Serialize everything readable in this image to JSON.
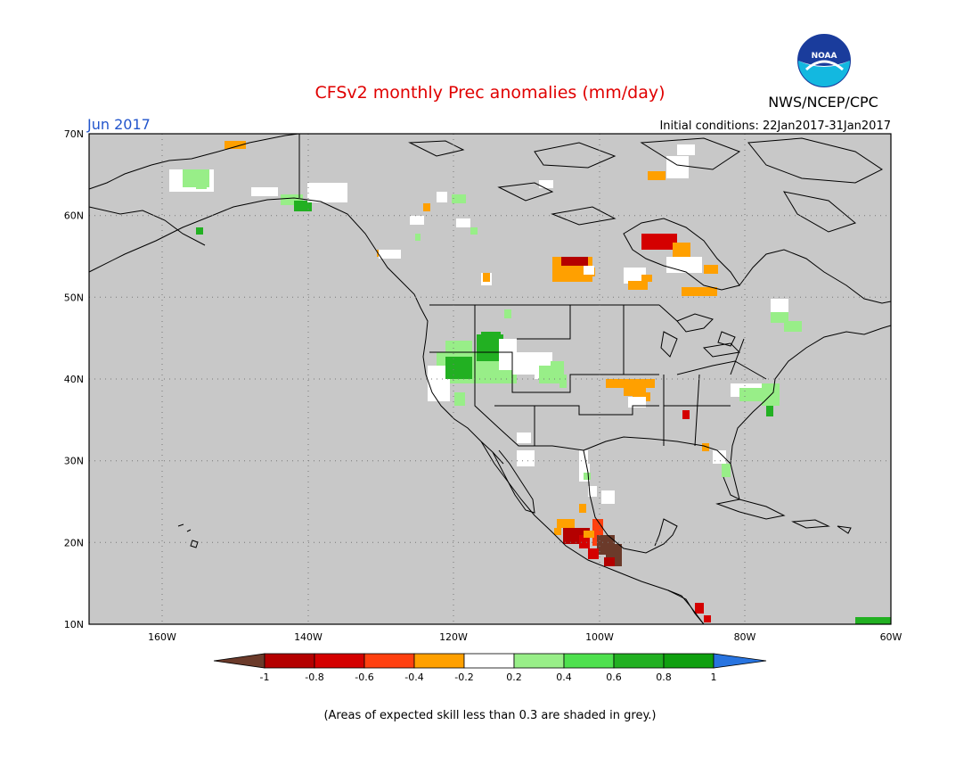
{
  "header": {
    "title": "CFSv2 monthly Prec anomalies (mm/day)",
    "title_color": "#e00000",
    "agency": "NWS/NCEP/CPC",
    "month": "Jun 2017",
    "month_color": "#2255cc",
    "initial_conditions": "Initial conditions: 22Jan2017-31Jan2017",
    "logo_text": "NOAA"
  },
  "map": {
    "background": "#c8c8c8",
    "lat_labels": [
      "70N",
      "60N",
      "50N",
      "40N",
      "30N",
      "20N",
      "10N"
    ],
    "lon_labels": [
      "160W",
      "140W",
      "120W",
      "100W",
      "80W",
      "60W"
    ]
  },
  "legend": {
    "labels": [
      "-1",
      "-0.8",
      "-0.6",
      "-0.4",
      "-0.2",
      "0.2",
      "0.4",
      "0.6",
      "0.8",
      "1"
    ],
    "colors": [
      "#6b3a2a",
      "#b40000",
      "#d40000",
      "#ff4010",
      "#ffa000",
      "#ffffff",
      "#98ee88",
      "#4ee04e",
      "#22b022",
      "#10a010",
      "#2874e0"
    ],
    "note": "(Areas of expected skill less than 0.3 are shaded in grey.)"
  }
}
